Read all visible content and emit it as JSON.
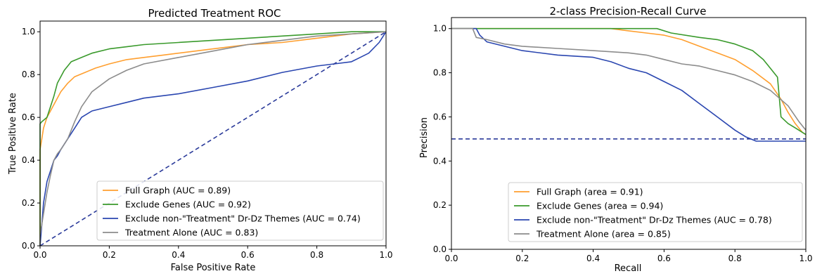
{
  "chart_data": [
    {
      "type": "line",
      "title": "Predicted Treatment ROC",
      "xlabel": "False Positive Rate",
      "ylabel": "True Positive Rate",
      "xlim": [
        0,
        1
      ],
      "ylim": [
        0,
        1.05
      ],
      "xticks": [
        "0.0",
        "0.2",
        "0.4",
        "0.6",
        "0.8",
        "1.0"
      ],
      "yticks": [
        "0.0",
        "0.2",
        "0.4",
        "0.6",
        "0.8",
        "1.0"
      ],
      "legend_position": "lower-right",
      "grid": false,
      "series": [
        {
          "name": "Full Graph (AUC = 0.89)",
          "color": "#ff9f2f",
          "x": [
            0,
            0,
            0.005,
            0.01,
            0.02,
            0.03,
            0.04,
            0.06,
            0.08,
            0.1,
            0.13,
            0.16,
            0.2,
            0.25,
            0.3,
            0.35,
            0.4,
            0.5,
            0.6,
            0.7,
            0.8,
            0.9,
            1.0
          ],
          "y": [
            0,
            0.45,
            0.5,
            0.55,
            0.6,
            0.63,
            0.66,
            0.72,
            0.76,
            0.79,
            0.81,
            0.83,
            0.85,
            0.87,
            0.88,
            0.89,
            0.9,
            0.92,
            0.94,
            0.95,
            0.97,
            0.99,
            1.0
          ]
        },
        {
          "name": "Exclude Genes (AUC = 0.92)",
          "color": "#3a9a2c",
          "x": [
            0,
            0,
            0.005,
            0.02,
            0.03,
            0.04,
            0.05,
            0.07,
            0.09,
            0.12,
            0.15,
            0.2,
            0.25,
            0.3,
            0.4,
            0.5,
            0.6,
            0.7,
            0.8,
            0.9,
            1.0
          ],
          "y": [
            0,
            0.57,
            0.58,
            0.6,
            0.65,
            0.7,
            0.76,
            0.82,
            0.86,
            0.88,
            0.9,
            0.92,
            0.93,
            0.94,
            0.95,
            0.96,
            0.97,
            0.98,
            0.99,
            1.0,
            1.0
          ]
        },
        {
          "name": "Exclude non-\"Treatment\" Dr-Dz Themes (AUC = 0.74)",
          "color": "#2a46b0",
          "x": [
            0,
            0.005,
            0.01,
            0.02,
            0.03,
            0.04,
            0.05,
            0.06,
            0.08,
            0.1,
            0.12,
            0.15,
            0.2,
            0.25,
            0.3,
            0.4,
            0.5,
            0.6,
            0.7,
            0.8,
            0.85,
            0.9,
            0.95,
            0.98,
            1.0
          ],
          "y": [
            0,
            0.1,
            0.2,
            0.3,
            0.35,
            0.4,
            0.42,
            0.45,
            0.5,
            0.55,
            0.6,
            0.63,
            0.65,
            0.67,
            0.69,
            0.71,
            0.74,
            0.77,
            0.81,
            0.84,
            0.85,
            0.86,
            0.9,
            0.95,
            1.0
          ]
        },
        {
          "name": "Treatment Alone (AUC = 0.83)",
          "color": "#8c8c8c",
          "x": [
            0,
            0,
            0.01,
            0.02,
            0.03,
            0.04,
            0.05,
            0.06,
            0.08,
            0.1,
            0.12,
            0.15,
            0.2,
            0.25,
            0.3,
            0.4,
            0.5,
            0.6,
            0.7,
            0.8,
            0.9,
            1.0
          ],
          "y": [
            0,
            0.05,
            0.15,
            0.25,
            0.33,
            0.4,
            0.43,
            0.45,
            0.5,
            0.58,
            0.65,
            0.72,
            0.78,
            0.82,
            0.85,
            0.88,
            0.91,
            0.94,
            0.96,
            0.98,
            0.99,
            1.0
          ]
        }
      ],
      "reference_line": {
        "x": [
          0,
          1
        ],
        "y": [
          0,
          1
        ],
        "color": "#2a3a9a",
        "style": "dashed"
      }
    },
    {
      "type": "line",
      "title": "2-class Precision-Recall Curve",
      "xlabel": "Recall",
      "ylabel": "Precision",
      "xlim": [
        0,
        1
      ],
      "ylim": [
        0,
        1.05
      ],
      "xticks": [
        "0.0",
        "0.2",
        "0.4",
        "0.6",
        "0.8",
        "1.0"
      ],
      "yticks": [
        "0.0",
        "0.2",
        "0.4",
        "0.6",
        "0.8",
        "1.0"
      ],
      "legend_position": "lower-center",
      "grid": false,
      "series": [
        {
          "name": "Full Graph (area = 0.91)",
          "color": "#ff9f2f",
          "x": [
            0,
            0.45,
            0.5,
            0.55,
            0.6,
            0.65,
            0.7,
            0.75,
            0.8,
            0.85,
            0.9,
            0.93,
            0.95,
            0.97,
            0.99,
            1.0
          ],
          "y": [
            1.0,
            1.0,
            0.99,
            0.98,
            0.97,
            0.95,
            0.92,
            0.89,
            0.86,
            0.81,
            0.75,
            0.68,
            0.62,
            0.57,
            0.53,
            0.52
          ]
        },
        {
          "name": "Exclude Genes (area = 0.94)",
          "color": "#3a9a2c",
          "x": [
            0,
            0.58,
            0.62,
            0.7,
            0.75,
            0.8,
            0.85,
            0.88,
            0.9,
            0.92,
            0.93,
            0.95,
            0.97,
            0.99,
            1.0
          ],
          "y": [
            1.0,
            1.0,
            0.98,
            0.96,
            0.95,
            0.93,
            0.9,
            0.86,
            0.82,
            0.78,
            0.6,
            0.57,
            0.55,
            0.53,
            0.52
          ]
        },
        {
          "name": "Exclude non-\"Treatment\" Dr-Dz Themes (AUC = 0.78)",
          "color": "#2a46b0",
          "x": [
            0,
            0.07,
            0.08,
            0.1,
            0.15,
            0.2,
            0.3,
            0.4,
            0.45,
            0.5,
            0.55,
            0.6,
            0.65,
            0.7,
            0.75,
            0.8,
            0.83,
            0.86,
            0.9,
            0.95,
            1.0
          ],
          "y": [
            1.0,
            1.0,
            0.97,
            0.94,
            0.92,
            0.9,
            0.88,
            0.87,
            0.85,
            0.82,
            0.8,
            0.76,
            0.72,
            0.66,
            0.6,
            0.54,
            0.51,
            0.49,
            0.49,
            0.49,
            0.49
          ]
        },
        {
          "name": "Treatment Alone (area = 0.85)",
          "color": "#8c8c8c",
          "x": [
            0,
            0.06,
            0.07,
            0.1,
            0.15,
            0.2,
            0.3,
            0.4,
            0.5,
            0.55,
            0.6,
            0.65,
            0.7,
            0.75,
            0.8,
            0.85,
            0.9,
            0.95,
            0.98,
            1.0
          ],
          "y": [
            1.0,
            1.0,
            0.96,
            0.95,
            0.93,
            0.92,
            0.91,
            0.9,
            0.89,
            0.88,
            0.86,
            0.84,
            0.83,
            0.81,
            0.79,
            0.76,
            0.72,
            0.65,
            0.58,
            0.54
          ]
        }
      ],
      "reference_line": {
        "x": [
          0,
          1
        ],
        "y": [
          0.5,
          0.5
        ],
        "color": "#2a3a9a",
        "style": "dashed"
      }
    }
  ]
}
